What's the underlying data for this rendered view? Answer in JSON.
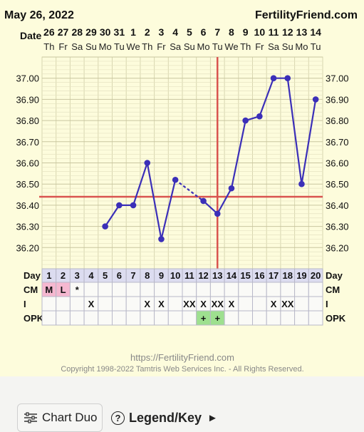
{
  "header": {
    "date": "May 26, 2022",
    "brand": "FertilityFriend.com"
  },
  "labels": {
    "date_row": "Date",
    "day_row": "Day",
    "cm_row": "CM",
    "i_row": "I",
    "opk_row": "OPK"
  },
  "footer": {
    "url": "https://FertilityFriend.com",
    "copyright": "Copyright 1998-2022 Tamtris Web Services Inc. - All Rights Reserved."
  },
  "buttons": {
    "chart_duo": "Chart Duo",
    "legend_key": "Legend/Key",
    "legend_arrow": "►"
  },
  "colors": {
    "background": "#fdfcdc",
    "grid": "#d8d6b0",
    "line": "#3b2fb8",
    "coverline": "#d9534f",
    "cm_pink": "#f5b8d0",
    "opk_green": "#9ee08f"
  },
  "chart_data": {
    "type": "line",
    "title": "",
    "xlabel": "",
    "ylabel": "",
    "ylim": [
      36.1,
      37.1
    ],
    "yticks": [
      "37.00",
      "36.90",
      "36.80",
      "36.70",
      "36.60",
      "36.50",
      "36.40",
      "36.30",
      "36.20"
    ],
    "dates": [
      "26",
      "27",
      "28",
      "29",
      "30",
      "31",
      "1",
      "2",
      "3",
      "4",
      "5",
      "6",
      "7",
      "8",
      "9",
      "10",
      "11",
      "12",
      "13",
      "14"
    ],
    "weekdays": [
      "Th",
      "Fr",
      "Sa",
      "Su",
      "Mo",
      "Tu",
      "We",
      "Th",
      "Fr",
      "Sa",
      "Su",
      "Mo",
      "Tu",
      "We",
      "Th",
      "Fr",
      "Sa",
      "Su",
      "Mo",
      "Tu"
    ],
    "days": [
      "1",
      "2",
      "3",
      "4",
      "5",
      "6",
      "7",
      "8",
      "9",
      "10",
      "11",
      "12",
      "13",
      "14",
      "15",
      "16",
      "17",
      "18",
      "19",
      "20"
    ],
    "temps": [
      null,
      null,
      null,
      null,
      36.3,
      36.4,
      36.4,
      36.6,
      36.24,
      36.52,
      null,
      36.42,
      36.36,
      36.48,
      36.8,
      36.82,
      37.0,
      37.0,
      36.5,
      36.9
    ],
    "coverline": 36.44,
    "ovulation_day": 13,
    "cm": [
      "M",
      "L",
      "*",
      "",
      "",
      "",
      "",
      "",
      "",
      "",
      "",
      "",
      "",
      "",
      "",
      "",
      "",
      "",
      "",
      ""
    ],
    "intercourse": [
      "",
      "",
      "",
      "X",
      "",
      "",
      "",
      "X",
      "X",
      "",
      "XX",
      "X",
      "XX",
      "X",
      "",
      "",
      "X",
      "XX",
      "",
      ""
    ],
    "opk": [
      "",
      "",
      "",
      "",
      "",
      "",
      "",
      "",
      "",
      "",
      "",
      "+",
      "+",
      "",
      "",
      "",
      "",
      "",
      "",
      ""
    ]
  }
}
